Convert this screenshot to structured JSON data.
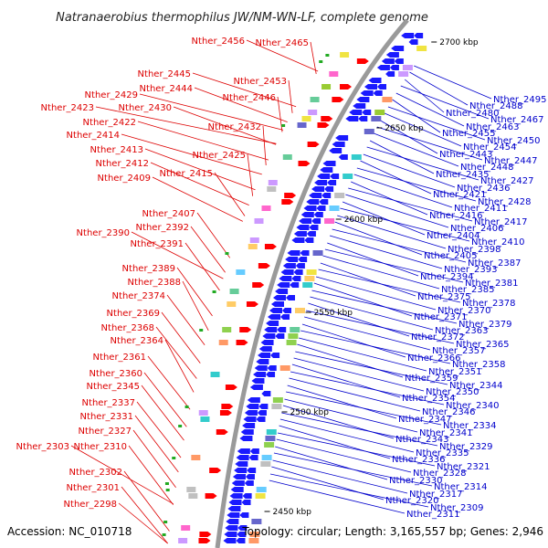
{
  "title": "Natranaerobius thermophilus JW/NM-WN-LF, complete genome",
  "accession": "Accession: NC_010718",
  "topology": "Topology: circular; Length: 3,165,557 bp; Genes: 2,946",
  "colors": {
    "left_label": "#dd0000",
    "right_label": "#0000cc",
    "backbone": "#999999",
    "cds_reverse": "#1a1aff",
    "cds_forward": "#ff0000",
    "rna": "#22aa22",
    "tick": "#000000"
  },
  "ticks": [
    {
      "label": "2700 kbp"
    },
    {
      "label": "2650 kbp"
    },
    {
      "label": "2600 kbp"
    },
    {
      "label": "2550 kbp"
    },
    {
      "label": "2500 kbp"
    },
    {
      "label": "2450 kbp"
    }
  ],
  "left_labels": [
    "Nther_2456",
    "Nther_2465",
    "Nther_2453",
    "Nther_2445",
    "Nther_2444",
    "Nther_2446",
    "Nther_2429",
    "Nther_2423",
    "Nther_2430",
    "Nther_2422",
    "Nther_2432",
    "Nther_2414",
    "Nther_2413",
    "Nther_2425",
    "Nther_2412",
    "Nther_2415",
    "Nther_2409",
    "Nther_2407",
    "Nther_2392",
    "Nther_2390",
    "Nther_2391",
    "Nther_2389",
    "Nther_2388",
    "Nther_2374",
    "Nther_2369",
    "Nther_2368",
    "Nther_2364",
    "Nther_2361",
    "Nther_2360",
    "Nther_2345",
    "Nther_2337",
    "Nther_2331",
    "Nther_2327",
    "Nther_2303",
    "Nther_2310",
    "Nther_2302",
    "Nther_2301",
    "Nther_2298"
  ],
  "right_labels": [
    "Nther_2495",
    "Nther_2488",
    "Nther_2480",
    "Nther_2467",
    "Nther_2463",
    "Nther_2455",
    "Nther_2450",
    "Nther_2454",
    "Nther_2443",
    "Nther_2447",
    "Nther_2448",
    "Nther_2435",
    "Nther_2427",
    "Nther_2436",
    "Nther_2421",
    "Nther_2428",
    "Nther_2411",
    "Nther_2416",
    "Nther_2417",
    "Nther_2406",
    "Nther_2404",
    "Nther_2410",
    "Nther_2398",
    "Nther_2405",
    "Nther_2387",
    "Nther_2393",
    "Nther_2394",
    "Nther_2381",
    "Nther_2385",
    "Nther_2375",
    "Nther_2378",
    "Nther_2370",
    "Nther_2371",
    "Nther_2379",
    "Nther_2363",
    "Nther_2372",
    "Nther_2365",
    "Nther_2357",
    "Nther_2366",
    "Nther_2358",
    "Nther_2351",
    "Nther_2359",
    "Nther_2344",
    "Nther_2350",
    "Nther_2354",
    "Nther_2340",
    "Nther_2346",
    "Nther_2347",
    "Nther_2334",
    "Nther_2341",
    "Nther_2343",
    "Nther_2329",
    "Nther_2335",
    "Nther_2336",
    "Nther_2321",
    "Nther_2328",
    "Nther_2330",
    "Nther_2314",
    "Nther_2317",
    "Nther_2320",
    "Nther_2309",
    "Nther_2311"
  ]
}
